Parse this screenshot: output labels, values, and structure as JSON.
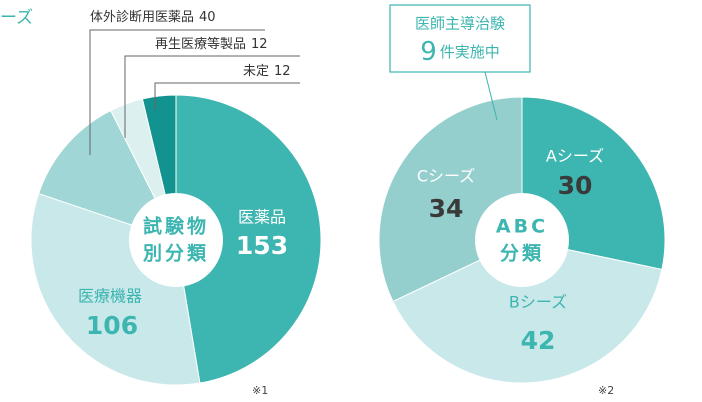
{
  "chart_data": [
    {
      "type": "pie",
      "heading": "ーズ",
      "categories": [
        "医薬品",
        "医療機器",
        "体外診断用医薬品",
        "再生医療等製品",
        "未定"
      ],
      "values": [
        153,
        106,
        40,
        12,
        12
      ],
      "colors": [
        "#3db5b0",
        "#c9e8ea",
        "#a0d6d5",
        "#dcf0f0",
        "#12938f"
      ],
      "center_label": [
        "試験物",
        "別分類"
      ],
      "note": "※1"
    },
    {
      "type": "pie",
      "categories": [
        "Aシーズ",
        "Bシーズ",
        "Cシーズ"
      ],
      "values": [
        30,
        42,
        34
      ],
      "colors": [
        "#3db5b0",
        "#c9e8ea",
        "#95cfcd"
      ],
      "center_label": [
        "ABC",
        "分類"
      ],
      "callout": {
        "title": "医師主導治験",
        "count": 9,
        "unit": "件実施中"
      },
      "note": "※2"
    }
  ]
}
